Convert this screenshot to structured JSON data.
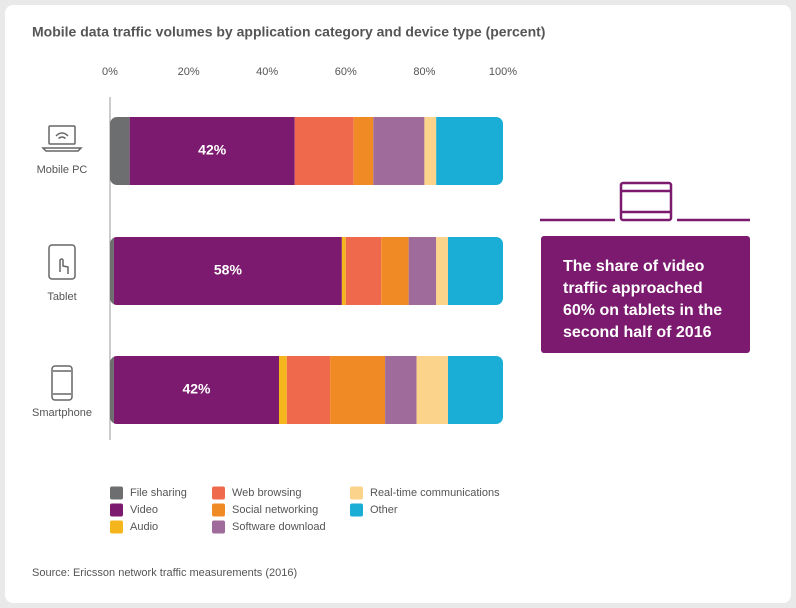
{
  "chart_data": {
    "type": "stacked_barh",
    "title": "Mobile data traffic volumes by application category and device type (percent)",
    "categories": [
      "Mobile PC",
      "Tablet",
      "Smartphone"
    ],
    "series": [
      {
        "name": "File sharing",
        "color": "#6d6e70",
        "values": [
          5,
          1,
          1
        ]
      },
      {
        "name": "Video",
        "color": "#7b1a6e",
        "values": [
          42,
          58,
          42
        ],
        "value_labels": [
          "42%",
          "58%",
          "42%"
        ]
      },
      {
        "name": "Audio",
        "color": "#f5b51c",
        "values": [
          0,
          1,
          2
        ]
      },
      {
        "name": "Web browsing",
        "color": "#ef6a4c",
        "values": [
          15,
          9,
          11
        ]
      },
      {
        "name": "Social networking",
        "color": "#f08a24",
        "values": [
          5,
          7,
          14
        ]
      },
      {
        "name": "Software download",
        "color": "#9e6b9a",
        "values": [
          13,
          7,
          8
        ]
      },
      {
        "name": "Real-time communications",
        "color": "#fcd38b",
        "values": [
          3,
          3,
          8
        ]
      },
      {
        "name": "Other",
        "color": "#1aaed6",
        "values": [
          17,
          14,
          14
        ]
      }
    ],
    "xlim": [
      0,
      100
    ],
    "xticks": [
      {
        "value": 0,
        "label": "0%"
      },
      {
        "value": 20,
        "label": "20%"
      },
      {
        "value": 40,
        "label": "40%"
      },
      {
        "value": 60,
        "label": "60%"
      },
      {
        "value": 80,
        "label": "80%"
      },
      {
        "value": 100,
        "label": "100%"
      }
    ],
    "grid": false,
    "annotation": "The share of video traffic approached 60% on tablets in the second half of 2016",
    "source": "Source: Ericsson network traffic measurements (2016)"
  }
}
